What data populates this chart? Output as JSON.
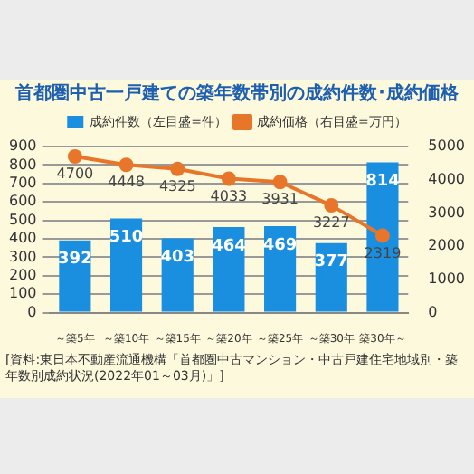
{
  "chart_data": {
    "type": "bar",
    "title": "首都圏中古一戸建ての築年数帯別の成約件数･成約価格",
    "categories": [
      "～築5年",
      "～築10年",
      "～築15年",
      "～築20年",
      "～築25年",
      "～築30年",
      "築30年～"
    ],
    "series": [
      {
        "name": "成約件数（左目盛=件）",
        "color": "#1a8fe0",
        "values": [
          392,
          510,
          403,
          464,
          469,
          377,
          814
        ]
      },
      {
        "name": "成約価格（右目盛=万円）",
        "type": "line",
        "axis": "y2",
        "color": "#e8762a",
        "marker": "circle",
        "values": [
          4700,
          4448,
          4325,
          4033,
          3931,
          3227,
          2319
        ]
      }
    ],
    "ylim": [
      0,
      900
    ],
    "yticks": [
      0,
      100,
      200,
      300,
      400,
      500,
      600,
      700,
      800,
      900
    ],
    "y2lim": [
      0,
      5000
    ],
    "y2ticks": [
      0,
      1000,
      2000,
      3000,
      4000,
      5000
    ],
    "grid": "y",
    "legend": "top",
    "data_labels": true,
    "annotations": [
      "[資料:東日本不動産流通機構「首都圏中古マンション・中古戸建住宅地域別・築年数別成約状況(2022年01～03月)」]"
    ]
  }
}
